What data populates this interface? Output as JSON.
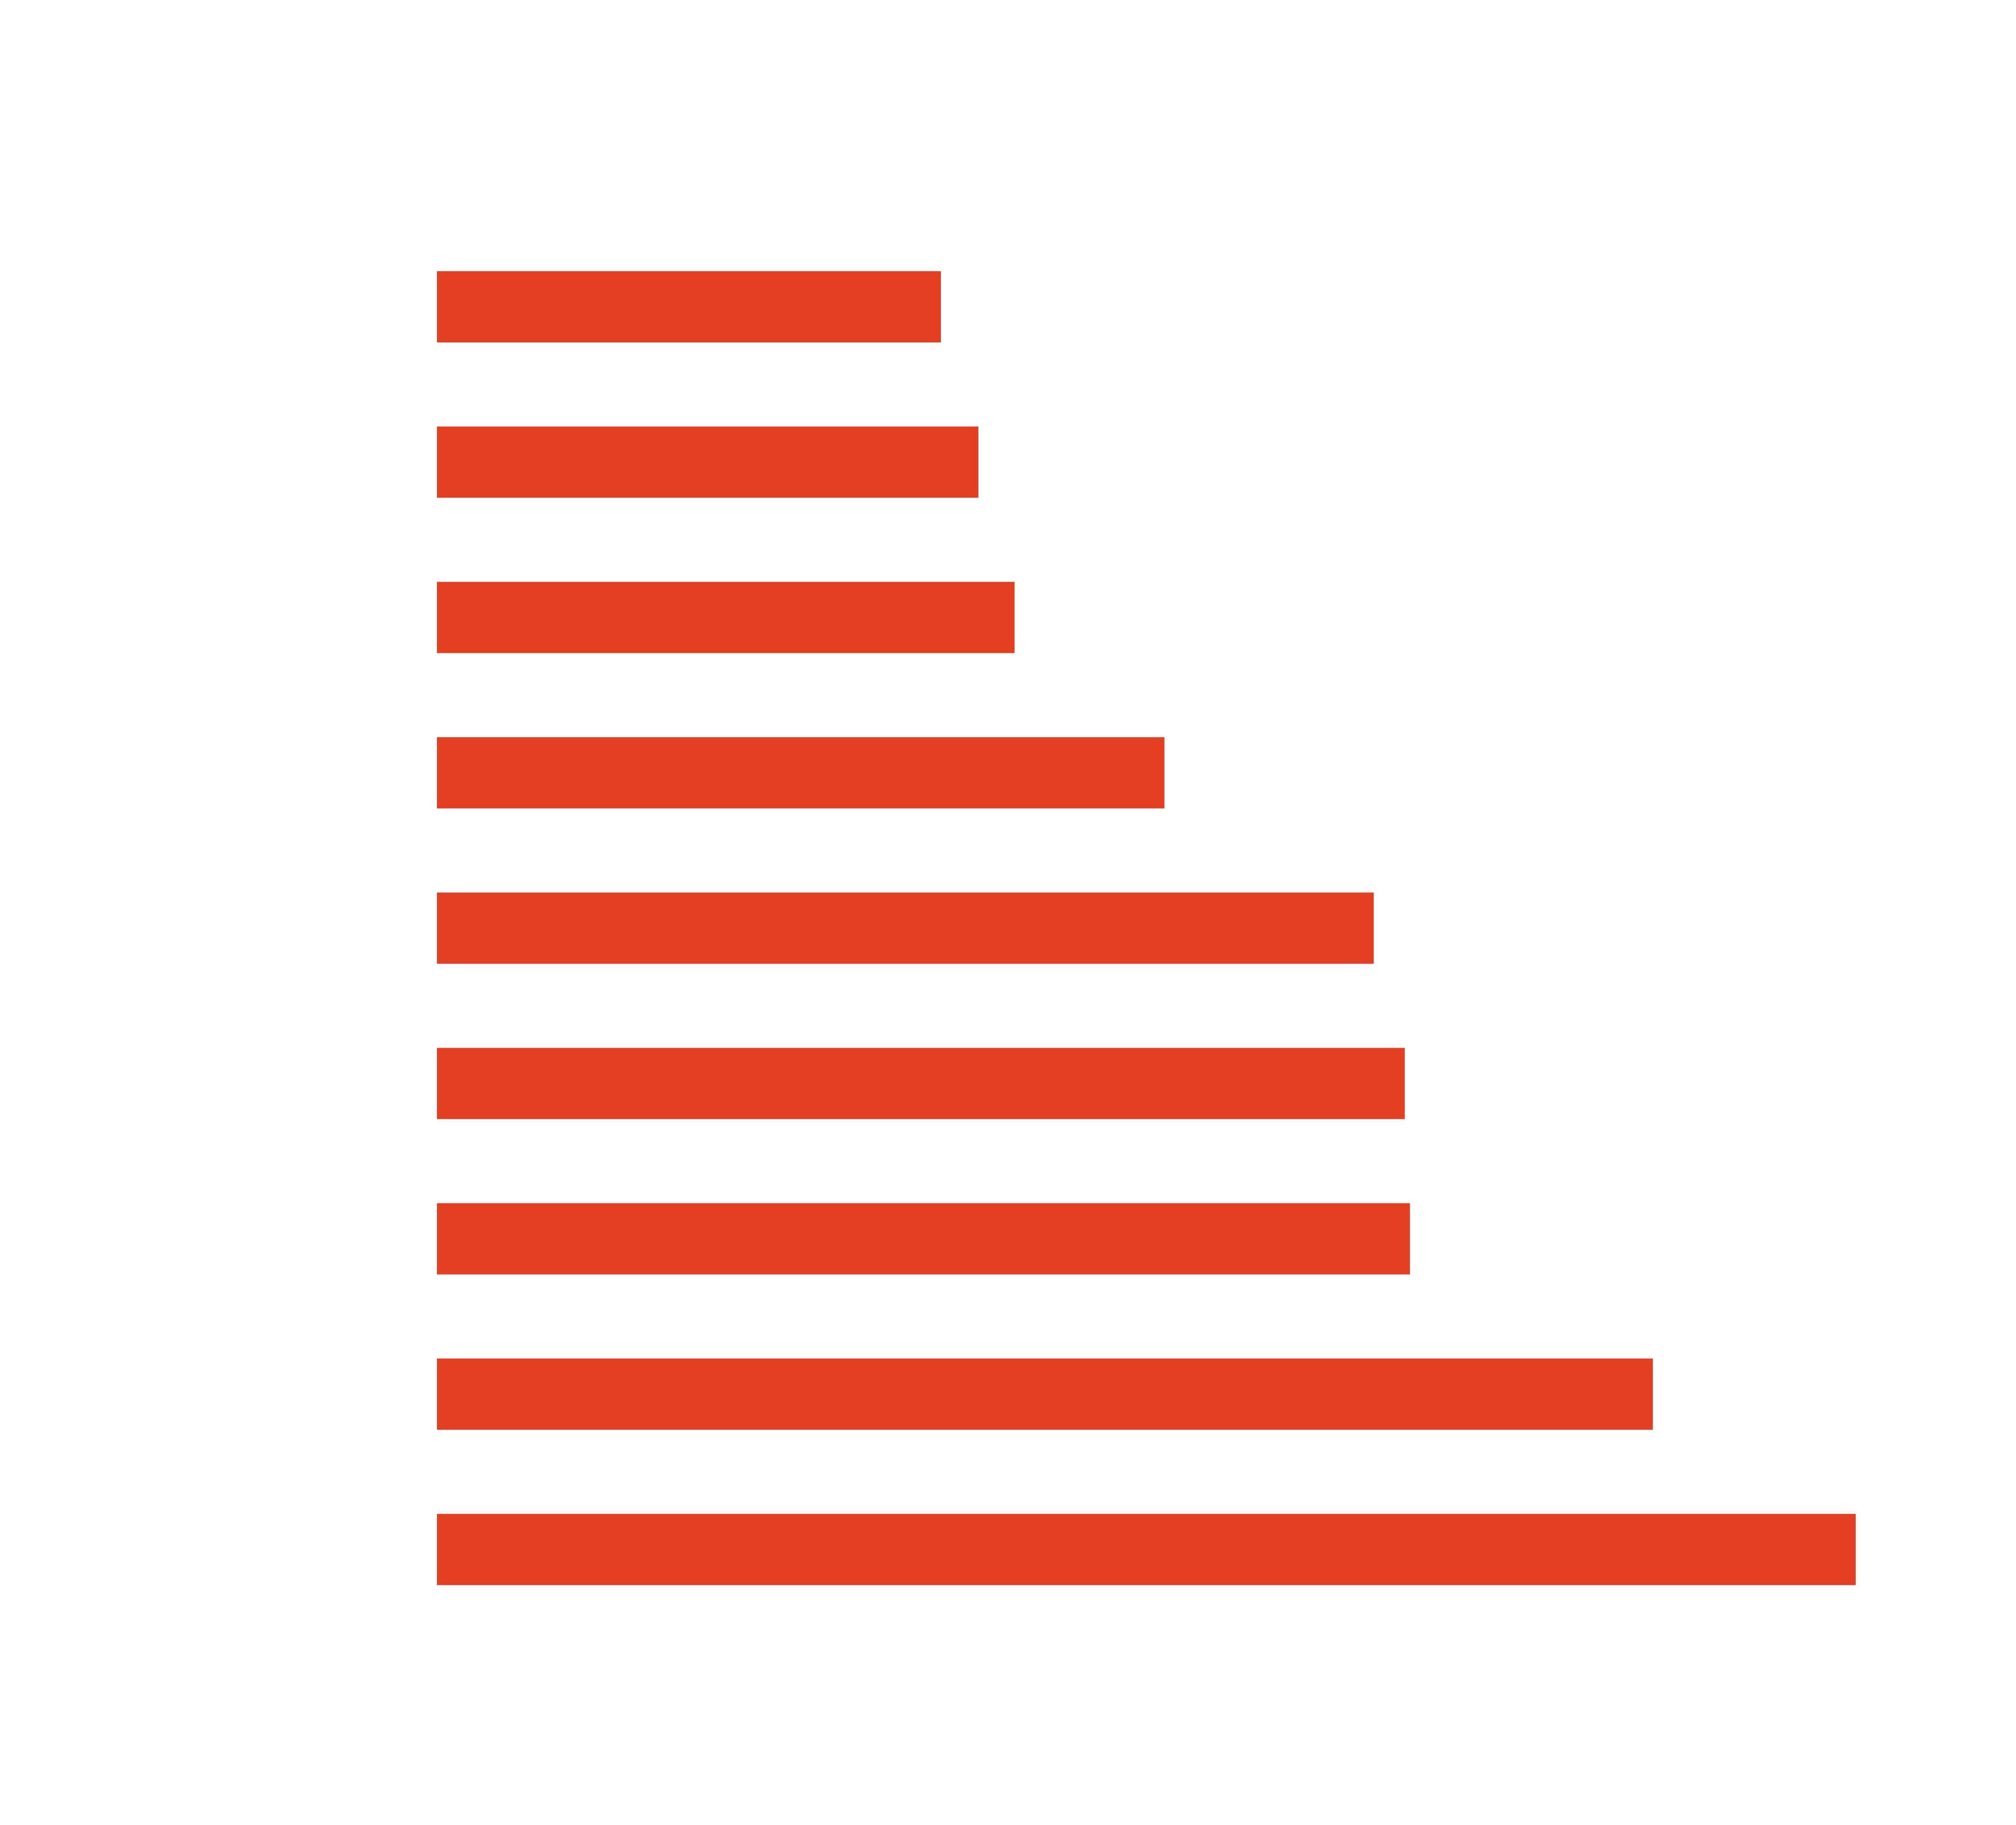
{
  "chart_data": {
    "type": "bar",
    "orientation": "horizontal",
    "categories": [
      null,
      null,
      null,
      null,
      null,
      null,
      null,
      null,
      null
    ],
    "values": [
      390,
      419,
      447,
      563,
      725,
      749,
      753,
      941,
      1098
    ],
    "color": "#e53f22",
    "xlim": [
      0,
      1100
    ]
  }
}
